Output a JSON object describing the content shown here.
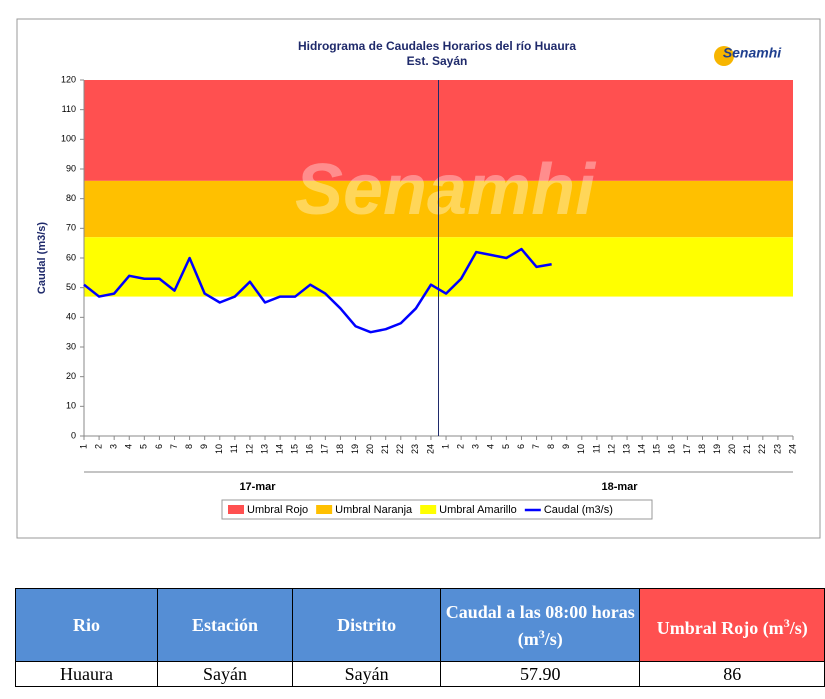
{
  "chart_data": {
    "type": "line",
    "title": "Hidrograma de Caudales Horarios del río Huaura",
    "subtitle": "Est. Sayán",
    "logo": "Senamhi",
    "y_label": "Caudal  (m3/s)",
    "categories": [
      "1",
      "2",
      "3",
      "4",
      "5",
      "6",
      "7",
      "8",
      "9",
      "10",
      "11",
      "12",
      "13",
      "14",
      "15",
      "16",
      "17",
      "18",
      "19",
      "20",
      "21",
      "22",
      "23",
      "24",
      "1",
      "2",
      "3",
      "4",
      "5",
      "6",
      "7",
      "8",
      "9",
      "10",
      "11",
      "12",
      "13",
      "14",
      "15",
      "16",
      "17",
      "18",
      "19",
      "20",
      "21",
      "22",
      "23",
      "24"
    ],
    "groups": [
      "17-mar",
      "18-mar"
    ],
    "thresholds": [
      {
        "name": "Umbral Rojo",
        "color": "#ff5050",
        "value": 86
      },
      {
        "name": "Umbral Naranja",
        "color": "#ffc000",
        "value": 67
      },
      {
        "name": "Umbral Amarillo",
        "color": "#ffff00",
        "value": 47
      }
    ],
    "series": [
      {
        "name": "Caudal (m3/s)",
        "color": "#0000ff",
        "values": [
          51,
          47,
          48,
          54,
          53,
          53,
          49,
          60,
          48,
          45,
          47,
          52,
          45,
          47,
          47,
          51,
          48,
          43,
          37,
          35,
          36,
          38,
          43,
          51,
          48,
          53,
          62,
          61,
          60,
          63,
          57,
          57.9,
          null,
          null,
          null,
          null,
          null,
          null,
          null,
          null,
          null,
          null,
          null,
          null,
          null,
          null,
          null,
          null
        ]
      }
    ],
    "ylim": [
      0,
      120
    ],
    "yticks": [
      0,
      10,
      20,
      30,
      40,
      50,
      60,
      70,
      80,
      90,
      100,
      110,
      120
    ],
    "grid": false
  },
  "table": {
    "headers": [
      {
        "text": "Rio"
      },
      {
        "text": "Estación"
      },
      {
        "text": "Distrito"
      },
      {
        "text": "Caudal a las 08:00 horas (m",
        "sup": "3",
        "tail": "/s)"
      },
      {
        "text": "Umbral Rojo (m",
        "sup": "3",
        "tail": "/s)"
      }
    ],
    "rows": [
      [
        "Huaura",
        "Sayán",
        "Sayán",
        "57.90",
        "86"
      ]
    ]
  }
}
